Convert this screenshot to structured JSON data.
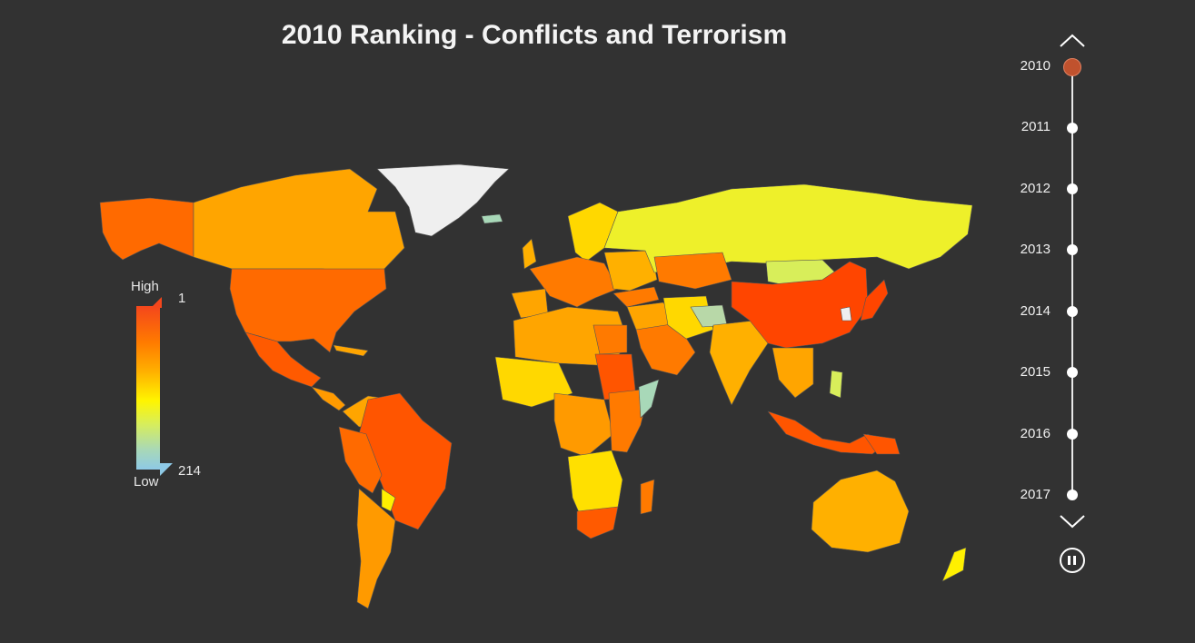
{
  "title": "2010 Ranking - Conflicts and Terrorism",
  "legend": {
    "high_label": "High",
    "low_label": "Low",
    "top_rank": "1",
    "bottom_rank": "214",
    "colors": [
      "#f4461c",
      "#ff7a00",
      "#ffb000",
      "#fff500",
      "#d8ee5a",
      "#a8d8b8",
      "#8ec9e6"
    ]
  },
  "timeline": {
    "years": [
      "2010",
      "2011",
      "2012",
      "2013",
      "2014",
      "2015",
      "2016",
      "2017"
    ],
    "selected": "2010",
    "up_icon": "chevron-up-icon",
    "down_icon": "chevron-down-icon",
    "pause_icon": "pause-icon"
  },
  "map": {
    "no_data_color": "#efefef",
    "background": "#323232"
  }
}
